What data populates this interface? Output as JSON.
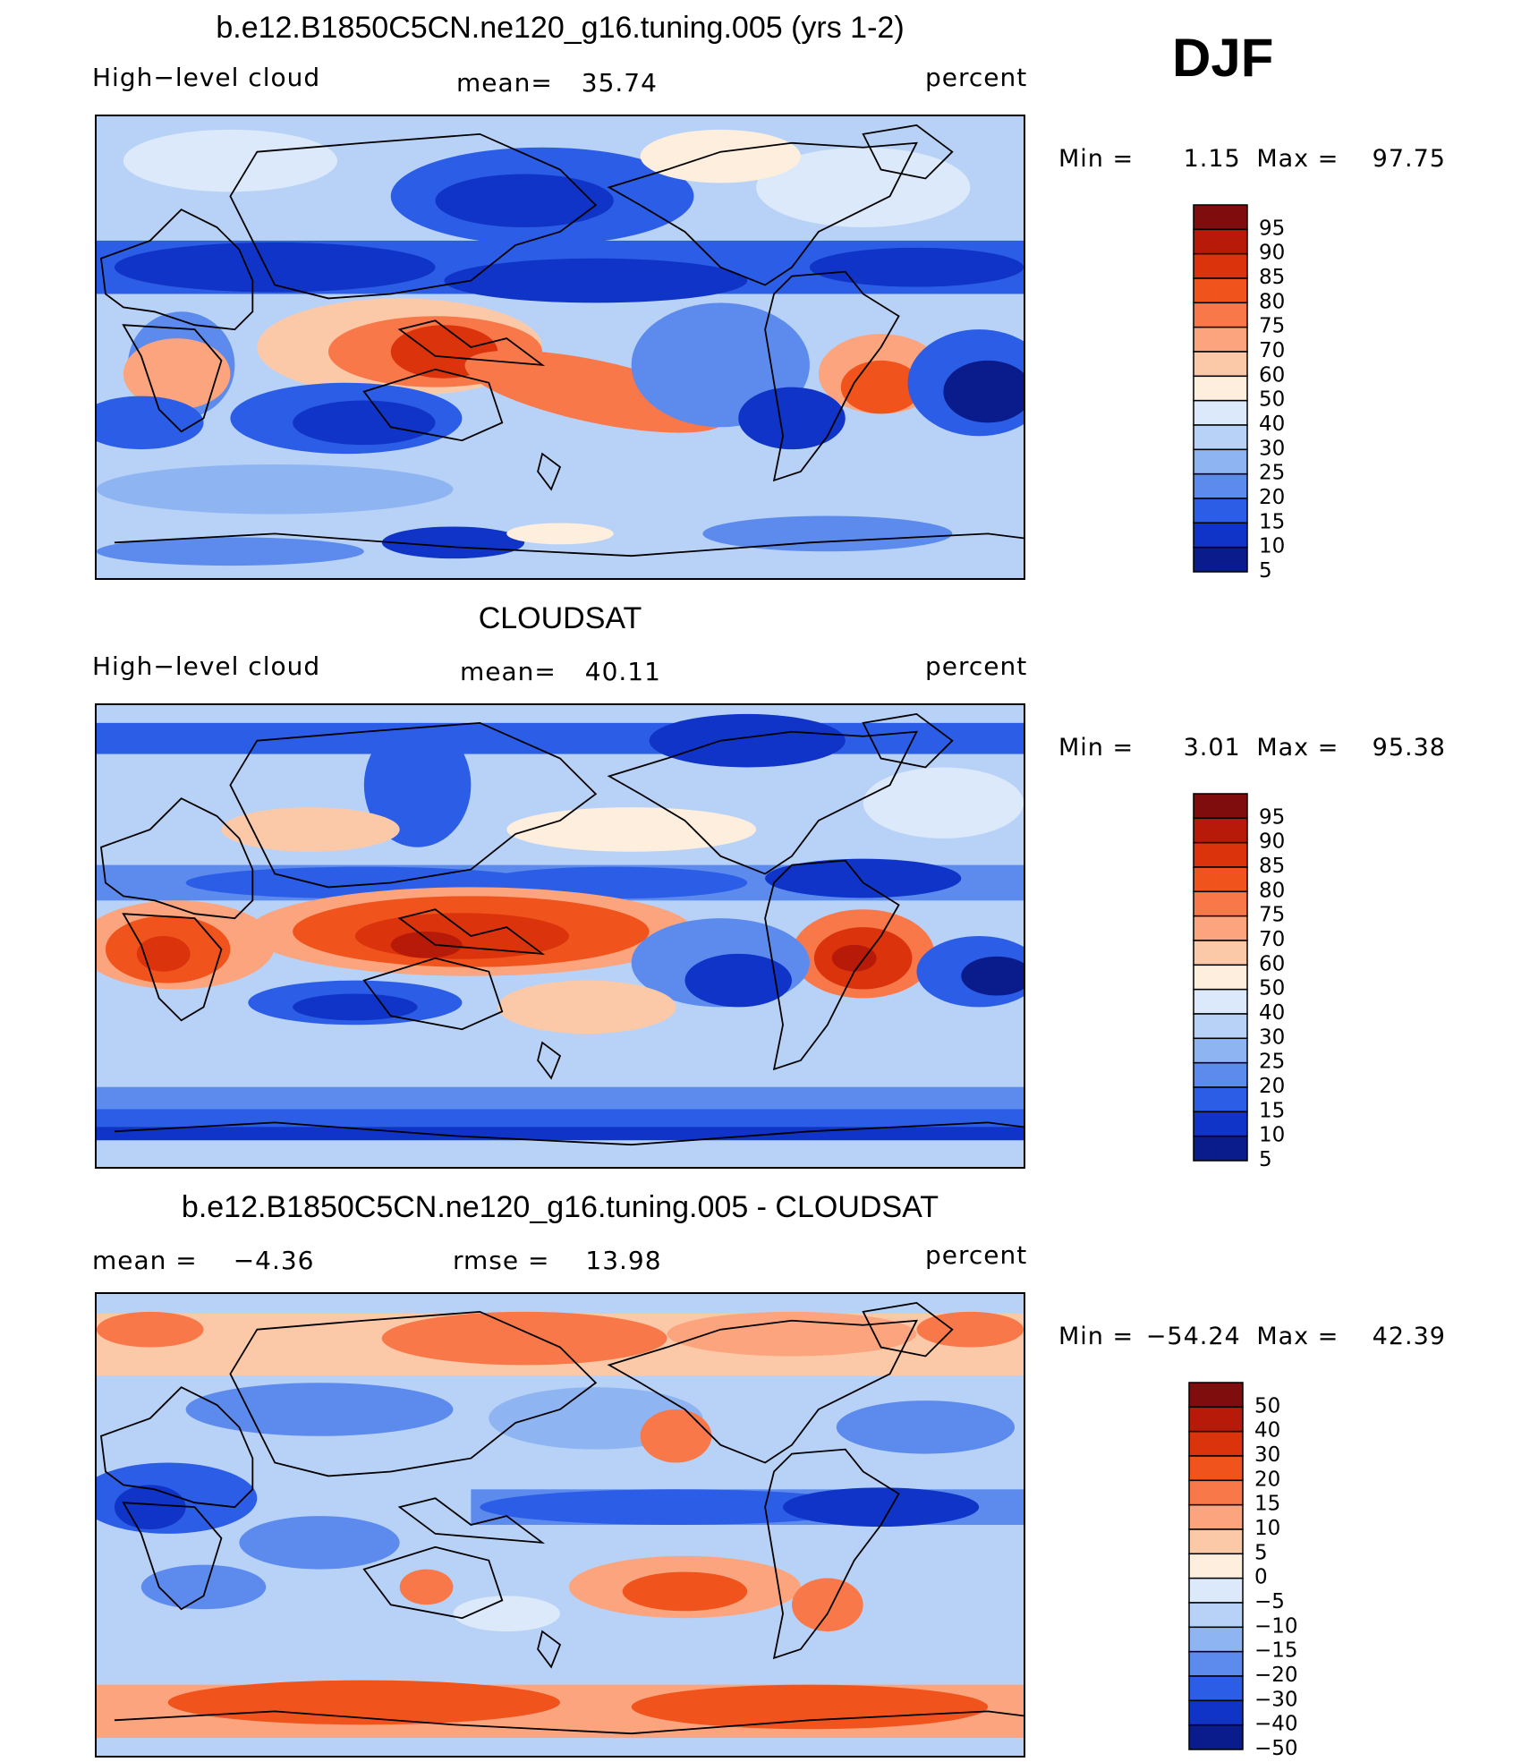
{
  "season": "DJF",
  "panels": [
    {
      "title": "b.e12.B1850C5CN.ne120_g16.tuning.005 (yrs 1-2)",
      "left_label": "High−level cloud",
      "center_label": "mean=",
      "center_value": "35.74",
      "right_label": "percent",
      "min_text": "Min  =",
      "min_value": "1.15",
      "max_text": "Max  =",
      "max_value": "97.75",
      "colorbar_levels": [
        "95",
        "90",
        "85",
        "80",
        "75",
        "70",
        "60",
        "50",
        "40",
        "30",
        "25",
        "20",
        "15",
        "10",
        "5"
      ]
    },
    {
      "title": "CLOUDSAT",
      "left_label": "High−level cloud",
      "center_label": "mean=",
      "center_value": "40.11",
      "right_label": "percent",
      "min_text": "Min  =",
      "min_value": "3.01",
      "max_text": "Max  =",
      "max_value": "95.38",
      "colorbar_levels": [
        "95",
        "90",
        "85",
        "80",
        "75",
        "70",
        "60",
        "50",
        "40",
        "30",
        "25",
        "20",
        "15",
        "10",
        "5"
      ]
    },
    {
      "title": "b.e12.B1850C5CN.ne120_g16.tuning.005 - CLOUDSAT",
      "left_label": "mean  =",
      "left_value": "−4.36",
      "center_label": "rmse  =",
      "center_value": "13.98",
      "right_label": "percent",
      "min_text": "Min  =",
      "min_value": "−54.24",
      "max_text": "Max  =",
      "max_value": "42.39",
      "colorbar_levels": [
        "50",
        "40",
        "30",
        "20",
        "15",
        "10",
        "5",
        "0",
        "−5",
        "−10",
        "−15",
        "−20",
        "−30",
        "−40",
        "−50"
      ]
    }
  ],
  "palette": [
    "#7f0d0d",
    "#b71a08",
    "#db340c",
    "#f0531c",
    "#f8784a",
    "#fba47e",
    "#fcc9a8",
    "#fdeedd",
    "#dbe9fa",
    "#b8d2f7",
    "#8fb4f2",
    "#5d8bed",
    "#2c5de6",
    "#0f34c7",
    "#0a1c8c"
  ]
}
